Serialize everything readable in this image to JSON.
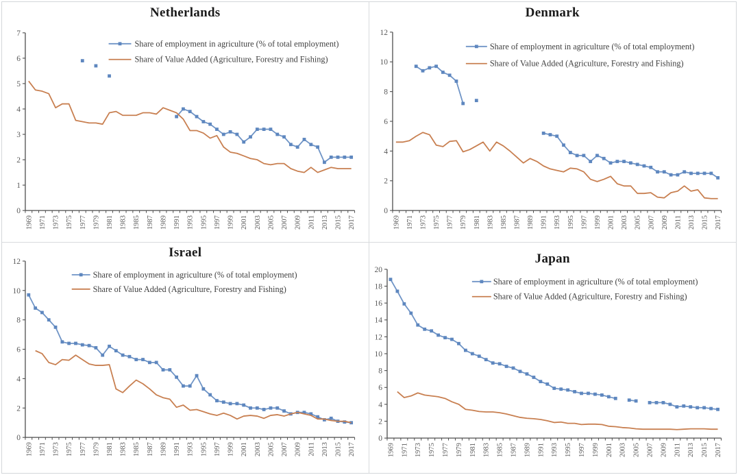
{
  "figure_title": "",
  "legend": {
    "employment": "Share of employment in agriculture (% of total employment)",
    "value_added": "Share of Value Added (Agriculture, Forestry and Fishing)"
  },
  "colors": {
    "employment": "#6f94c6",
    "employment_marker": "#5e87bf",
    "value_added": "#c87f50",
    "axis": "#4d4d4d",
    "tick_label": "#595959",
    "legend_text": "#3f3f3f",
    "title": "#1a1a1a",
    "panel_border": "#d8dbdd"
  },
  "chart_data": [
    {
      "type": "line",
      "title": "Netherlands",
      "x_start": 1969,
      "x_end": 2017,
      "x_label_every": 2,
      "ylim": [
        0,
        7
      ],
      "ytick_step": 1,
      "grid": false,
      "legend_position": "inside-top",
      "series": [
        {
          "key": "employment",
          "marker": "square",
          "values": [
            null,
            null,
            null,
            null,
            null,
            null,
            null,
            null,
            5.9,
            null,
            5.7,
            null,
            5.3,
            null,
            null,
            null,
            null,
            null,
            null,
            null,
            null,
            null,
            3.7,
            4.0,
            3.9,
            3.7,
            3.5,
            3.4,
            3.2,
            3.0,
            3.1,
            3.0,
            2.7,
            2.9,
            3.2,
            3.2,
            3.2,
            3.0,
            2.9,
            2.6,
            2.5,
            2.8,
            2.6,
            2.5,
            1.9,
            2.1,
            2.1,
            2.1,
            2.1
          ]
        },
        {
          "key": "value_added",
          "marker": "none",
          "values": [
            5.1,
            4.75,
            4.7,
            4.6,
            4.05,
            4.2,
            4.2,
            3.55,
            3.5,
            3.45,
            3.45,
            3.4,
            3.85,
            3.9,
            3.75,
            3.75,
            3.75,
            3.85,
            3.85,
            3.8,
            4.05,
            3.95,
            3.85,
            3.6,
            3.15,
            3.15,
            3.05,
            2.85,
            2.95,
            2.5,
            2.3,
            2.25,
            2.15,
            2.05,
            2.0,
            1.85,
            1.8,
            1.85,
            1.85,
            1.65,
            1.55,
            1.5,
            1.7,
            1.5,
            1.6,
            1.7,
            1.65,
            1.65,
            1.65
          ]
        }
      ]
    },
    {
      "type": "line",
      "title": "Denmark",
      "x_start": 1969,
      "x_end": 2017,
      "x_label_every": 2,
      "ylim": [
        0,
        12
      ],
      "ytick_step": 2,
      "grid": false,
      "legend_position": "inside-top",
      "series": [
        {
          "key": "employment",
          "marker": "square",
          "values": [
            null,
            null,
            null,
            9.7,
            9.4,
            9.6,
            9.7,
            9.3,
            9.1,
            8.7,
            7.2,
            null,
            7.4,
            null,
            null,
            null,
            null,
            null,
            null,
            null,
            null,
            null,
            5.2,
            5.1,
            5.0,
            4.4,
            3.9,
            3.7,
            3.7,
            3.3,
            3.7,
            3.5,
            3.2,
            3.3,
            3.3,
            3.2,
            3.1,
            3.0,
            2.9,
            2.6,
            2.6,
            2.4,
            2.4,
            2.6,
            2.5,
            2.5,
            2.5,
            2.5,
            2.2
          ]
        },
        {
          "key": "value_added",
          "marker": "none",
          "values": [
            4.6,
            4.6,
            4.7,
            5.0,
            5.25,
            5.1,
            4.4,
            4.3,
            4.65,
            4.7,
            3.95,
            4.1,
            4.35,
            4.6,
            4.0,
            4.6,
            4.35,
            4.0,
            3.6,
            3.2,
            3.5,
            3.3,
            3.0,
            2.8,
            2.7,
            2.6,
            2.85,
            2.8,
            2.6,
            2.1,
            1.95,
            2.1,
            2.3,
            1.8,
            1.65,
            1.65,
            1.15,
            1.15,
            1.2,
            0.9,
            0.85,
            1.2,
            1.3,
            1.65,
            1.3,
            1.4,
            0.85,
            0.8,
            0.8
          ]
        }
      ]
    },
    {
      "type": "line",
      "title": "Israel",
      "x_start": 1969,
      "x_end": 2017,
      "x_label_every": 2,
      "ylim": [
        0,
        12
      ],
      "ytick_step": 2,
      "grid": false,
      "legend_position": "inside-top",
      "series": [
        {
          "key": "employment",
          "marker": "square",
          "values": [
            9.7,
            8.8,
            8.5,
            8.0,
            7.5,
            6.5,
            6.4,
            6.4,
            6.3,
            6.25,
            6.1,
            5.6,
            6.2,
            5.9,
            5.6,
            5.5,
            5.3,
            5.3,
            5.1,
            5.1,
            4.6,
            4.6,
            4.1,
            3.5,
            3.5,
            4.2,
            3.3,
            2.9,
            2.5,
            2.4,
            2.3,
            2.3,
            2.2,
            2.0,
            2.0,
            1.9,
            2.0,
            2.0,
            1.8,
            1.6,
            1.7,
            1.7,
            1.6,
            1.4,
            1.2,
            1.3,
            1.1,
            1.05,
            1.0
          ]
        },
        {
          "key": "value_added",
          "marker": "none",
          "values": [
            null,
            5.9,
            5.7,
            5.1,
            4.95,
            5.3,
            5.25,
            5.6,
            5.3,
            5.0,
            4.9,
            4.9,
            4.95,
            3.3,
            3.05,
            3.5,
            3.9,
            3.65,
            3.3,
            2.9,
            2.7,
            2.6,
            2.05,
            2.2,
            1.85,
            1.9,
            1.75,
            1.6,
            1.5,
            1.65,
            1.5,
            1.25,
            1.45,
            1.5,
            1.45,
            1.3,
            1.5,
            1.55,
            1.45,
            1.6,
            1.7,
            1.6,
            1.5,
            1.25,
            1.25,
            1.15,
            1.1,
            1.1,
            1.0
          ]
        }
      ]
    },
    {
      "type": "line",
      "title": "Japan",
      "x_start": 1969,
      "x_end": 2017,
      "x_label_every": 2,
      "ylim": [
        0,
        20
      ],
      "ytick_step": 2,
      "grid": false,
      "legend_position": "inside-top",
      "series": [
        {
          "key": "employment",
          "marker": "square",
          "values": [
            18.8,
            17.4,
            15.9,
            14.8,
            13.4,
            12.9,
            12.7,
            12.2,
            11.9,
            11.7,
            11.2,
            10.4,
            10.0,
            9.7,
            9.3,
            8.9,
            8.8,
            8.5,
            8.3,
            7.9,
            7.6,
            7.2,
            6.7,
            6.4,
            5.9,
            5.8,
            5.7,
            5.5,
            5.3,
            5.3,
            5.2,
            5.1,
            4.9,
            4.7,
            null,
            4.5,
            4.4,
            null,
            4.2,
            4.2,
            4.2,
            4.0,
            3.7,
            3.8,
            3.7,
            3.6,
            3.6,
            3.5,
            3.4
          ]
        },
        {
          "key": "value_added",
          "marker": "none",
          "values": [
            null,
            5.5,
            4.8,
            5.0,
            5.35,
            5.1,
            5.0,
            4.9,
            4.7,
            4.3,
            4.0,
            3.4,
            3.3,
            3.15,
            3.1,
            3.1,
            3.0,
            2.85,
            2.65,
            2.45,
            2.35,
            2.3,
            2.2,
            2.05,
            1.85,
            1.9,
            1.75,
            1.75,
            1.6,
            1.65,
            1.65,
            1.6,
            1.4,
            1.35,
            1.25,
            1.2,
            1.1,
            1.05,
            1.05,
            1.05,
            1.05,
            1.05,
            1.0,
            1.05,
            1.1,
            1.1,
            1.1,
            1.05,
            1.05
          ]
        }
      ]
    }
  ]
}
